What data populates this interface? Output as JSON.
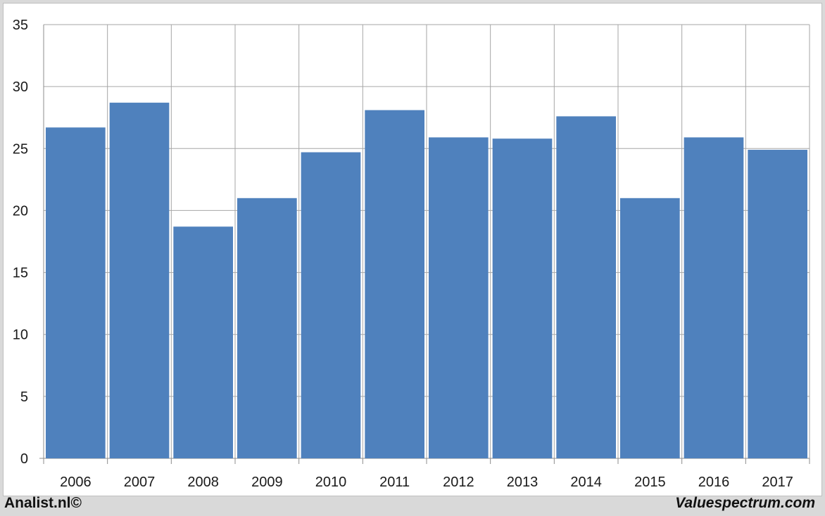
{
  "chart_data": {
    "type": "bar",
    "categories": [
      "2006",
      "2007",
      "2008",
      "2009",
      "2010",
      "2011",
      "2012",
      "2013",
      "2014",
      "2015",
      "2016",
      "2017"
    ],
    "values": [
      26.7,
      28.7,
      18.7,
      21.0,
      24.7,
      28.1,
      25.9,
      25.8,
      27.6,
      21.0,
      25.9,
      24.9
    ],
    "ylim": [
      0,
      35
    ],
    "yticks": [
      "0",
      "5",
      "10",
      "15",
      "20",
      "25",
      "30",
      "35"
    ],
    "grid": true,
    "legend": "none",
    "bar_color": "#4f81bd"
  },
  "footer": {
    "left": "Analist.nl©",
    "right": "Valuespectrum.com"
  }
}
